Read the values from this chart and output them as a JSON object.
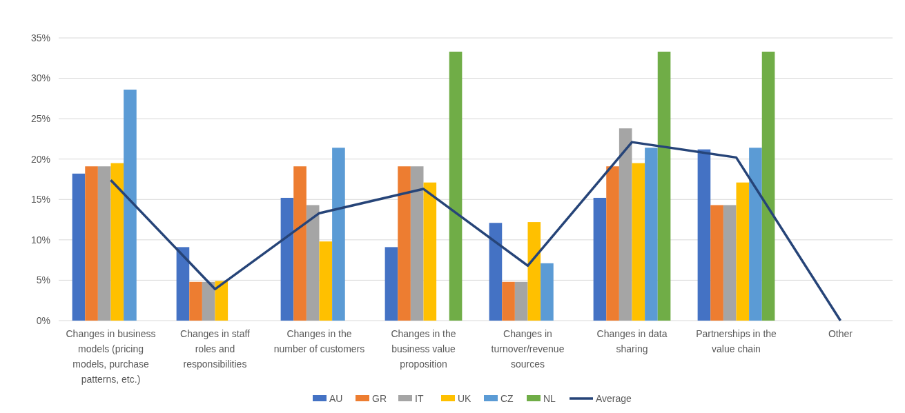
{
  "chart_data": {
    "type": "bar",
    "categories": [
      "Changes in business models (pricing models, purchase patterns, etc.)",
      "Changes in staff roles and responsibilities",
      "Changes in the number of customers",
      "Changes in the business value proposition",
      "Changes in turnover/revenue sources",
      "Changes in data sharing",
      "Partnerships in the value chain",
      "Other"
    ],
    "series": [
      {
        "name": "AU",
        "color": "#4472c4",
        "values": [
          18.2,
          9.1,
          15.2,
          9.1,
          12.1,
          15.2,
          21.2,
          0
        ]
      },
      {
        "name": "GR",
        "color": "#ed7d31",
        "values": [
          19.1,
          4.8,
          19.1,
          19.1,
          4.8,
          19.1,
          14.3,
          0
        ]
      },
      {
        "name": "IT",
        "color": "#a5a5a5",
        "values": [
          19.1,
          4.8,
          14.3,
          19.1,
          4.8,
          23.8,
          14.3,
          0
        ]
      },
      {
        "name": "UK",
        "color": "#ffc000",
        "values": [
          19.5,
          4.9,
          9.8,
          17.1,
          12.2,
          19.5,
          17.1,
          0
        ]
      },
      {
        "name": "CZ",
        "color": "#5b9bd5",
        "values": [
          28.6,
          0,
          21.4,
          0,
          7.1,
          21.4,
          21.4,
          0
        ]
      },
      {
        "name": "NL",
        "color": "#70ad47",
        "values": [
          0,
          0,
          0,
          33.3,
          0,
          33.3,
          33.3,
          0
        ]
      },
      {
        "name": "Average",
        "type": "line",
        "color": "#264478",
        "values": [
          17.4,
          3.9,
          13.3,
          16.3,
          6.8,
          22.1,
          20.2,
          0
        ]
      }
    ],
    "ylim": [
      0,
      35
    ],
    "yticks": [
      {
        "value": 0,
        "label": "0%"
      },
      {
        "value": 5,
        "label": "5%"
      },
      {
        "value": 10,
        "label": "10%"
      },
      {
        "value": 15,
        "label": "15%"
      },
      {
        "value": 20,
        "label": "20%"
      },
      {
        "value": 25,
        "label": "25%"
      },
      {
        "value": 30,
        "label": "30%"
      },
      {
        "value": 35,
        "label": "35%"
      }
    ],
    "grid": "y",
    "legend": "bottom"
  }
}
